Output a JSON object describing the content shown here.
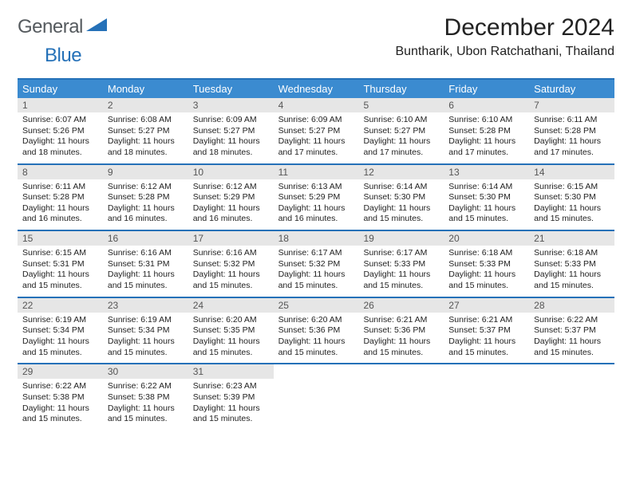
{
  "brand": {
    "word1": "General",
    "word2": "Blue",
    "color1": "#555a5e",
    "color2": "#2571b8",
    "triangle_fill": "#2571b8"
  },
  "header": {
    "month_title": "December 2024",
    "location": "Buntharik, Ubon Ratchathani, Thailand"
  },
  "calendar": {
    "type": "table",
    "header_bg": "#3b8bd0",
    "header_fg": "#ffffff",
    "border_color": "#2571b8",
    "daynum_bg": "#e6e6e6",
    "daynum_fg": "#555555",
    "body_fontsize": 10.5,
    "columns": [
      "Sunday",
      "Monday",
      "Tuesday",
      "Wednesday",
      "Thursday",
      "Friday",
      "Saturday"
    ],
    "weeks": [
      [
        {
          "n": "1",
          "sr": "6:07 AM",
          "ss": "5:26 PM",
          "dl": "11 hours and 18 minutes."
        },
        {
          "n": "2",
          "sr": "6:08 AM",
          "ss": "5:27 PM",
          "dl": "11 hours and 18 minutes."
        },
        {
          "n": "3",
          "sr": "6:09 AM",
          "ss": "5:27 PM",
          "dl": "11 hours and 18 minutes."
        },
        {
          "n": "4",
          "sr": "6:09 AM",
          "ss": "5:27 PM",
          "dl": "11 hours and 17 minutes."
        },
        {
          "n": "5",
          "sr": "6:10 AM",
          "ss": "5:27 PM",
          "dl": "11 hours and 17 minutes."
        },
        {
          "n": "6",
          "sr": "6:10 AM",
          "ss": "5:28 PM",
          "dl": "11 hours and 17 minutes."
        },
        {
          "n": "7",
          "sr": "6:11 AM",
          "ss": "5:28 PM",
          "dl": "11 hours and 17 minutes."
        }
      ],
      [
        {
          "n": "8",
          "sr": "6:11 AM",
          "ss": "5:28 PM",
          "dl": "11 hours and 16 minutes."
        },
        {
          "n": "9",
          "sr": "6:12 AM",
          "ss": "5:28 PM",
          "dl": "11 hours and 16 minutes."
        },
        {
          "n": "10",
          "sr": "6:12 AM",
          "ss": "5:29 PM",
          "dl": "11 hours and 16 minutes."
        },
        {
          "n": "11",
          "sr": "6:13 AM",
          "ss": "5:29 PM",
          "dl": "11 hours and 16 minutes."
        },
        {
          "n": "12",
          "sr": "6:14 AM",
          "ss": "5:30 PM",
          "dl": "11 hours and 15 minutes."
        },
        {
          "n": "13",
          "sr": "6:14 AM",
          "ss": "5:30 PM",
          "dl": "11 hours and 15 minutes."
        },
        {
          "n": "14",
          "sr": "6:15 AM",
          "ss": "5:30 PM",
          "dl": "11 hours and 15 minutes."
        }
      ],
      [
        {
          "n": "15",
          "sr": "6:15 AM",
          "ss": "5:31 PM",
          "dl": "11 hours and 15 minutes."
        },
        {
          "n": "16",
          "sr": "6:16 AM",
          "ss": "5:31 PM",
          "dl": "11 hours and 15 minutes."
        },
        {
          "n": "17",
          "sr": "6:16 AM",
          "ss": "5:32 PM",
          "dl": "11 hours and 15 minutes."
        },
        {
          "n": "18",
          "sr": "6:17 AM",
          "ss": "5:32 PM",
          "dl": "11 hours and 15 minutes."
        },
        {
          "n": "19",
          "sr": "6:17 AM",
          "ss": "5:33 PM",
          "dl": "11 hours and 15 minutes."
        },
        {
          "n": "20",
          "sr": "6:18 AM",
          "ss": "5:33 PM",
          "dl": "11 hours and 15 minutes."
        },
        {
          "n": "21",
          "sr": "6:18 AM",
          "ss": "5:33 PM",
          "dl": "11 hours and 15 minutes."
        }
      ],
      [
        {
          "n": "22",
          "sr": "6:19 AM",
          "ss": "5:34 PM",
          "dl": "11 hours and 15 minutes."
        },
        {
          "n": "23",
          "sr": "6:19 AM",
          "ss": "5:34 PM",
          "dl": "11 hours and 15 minutes."
        },
        {
          "n": "24",
          "sr": "6:20 AM",
          "ss": "5:35 PM",
          "dl": "11 hours and 15 minutes."
        },
        {
          "n": "25",
          "sr": "6:20 AM",
          "ss": "5:36 PM",
          "dl": "11 hours and 15 minutes."
        },
        {
          "n": "26",
          "sr": "6:21 AM",
          "ss": "5:36 PM",
          "dl": "11 hours and 15 minutes."
        },
        {
          "n": "27",
          "sr": "6:21 AM",
          "ss": "5:37 PM",
          "dl": "11 hours and 15 minutes."
        },
        {
          "n": "28",
          "sr": "6:22 AM",
          "ss": "5:37 PM",
          "dl": "11 hours and 15 minutes."
        }
      ],
      [
        {
          "n": "29",
          "sr": "6:22 AM",
          "ss": "5:38 PM",
          "dl": "11 hours and 15 minutes."
        },
        {
          "n": "30",
          "sr": "6:22 AM",
          "ss": "5:38 PM",
          "dl": "11 hours and 15 minutes."
        },
        {
          "n": "31",
          "sr": "6:23 AM",
          "ss": "5:39 PM",
          "dl": "11 hours and 15 minutes."
        },
        null,
        null,
        null,
        null
      ]
    ],
    "labels": {
      "sunrise": "Sunrise:",
      "sunset": "Sunset:",
      "daylight": "Daylight:"
    }
  }
}
